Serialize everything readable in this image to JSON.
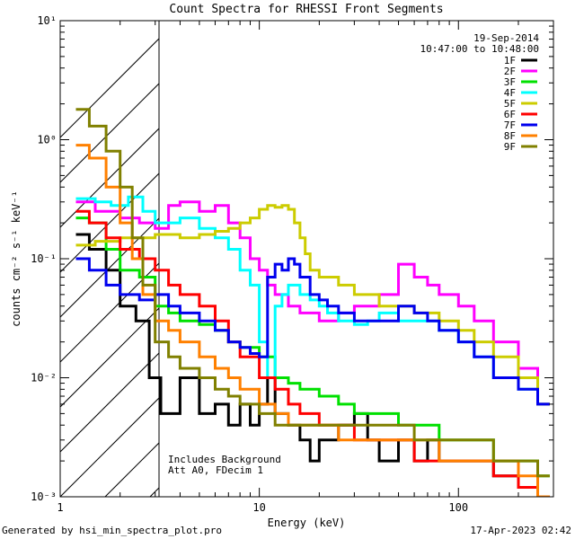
{
  "chart_data": {
    "type": "line",
    "title": "Count Spectra for RHESSI Front Segments",
    "xlabel": "Energy (keV)",
    "ylabel": "counts cm⁻² s⁻¹ keV⁻¹",
    "xscale": "log",
    "yscale": "log",
    "xlim": [
      1,
      300
    ],
    "ylim": [
      0.001,
      10
    ],
    "x_ticks": [
      {
        "value": 1,
        "label": "1"
      },
      {
        "value": 10,
        "label": "10"
      },
      {
        "value": 100,
        "label": "100"
      }
    ],
    "y_ticks": [
      {
        "value": 10,
        "label": "10¹"
      },
      {
        "value": 1,
        "label": "10⁰"
      },
      {
        "value": 0.1,
        "label": "10⁻¹"
      },
      {
        "value": 0.01,
        "label": "10⁻²"
      },
      {
        "value": 0.001,
        "label": "10⁻³"
      }
    ],
    "hatched_region": {
      "x_from": 1,
      "x_to": 3
    },
    "date": "19-Sep-2014",
    "time_range": "10:47:00 to 10:48:00",
    "annotation_lines": [
      "Includes Background",
      "Att A0, FDecim 1"
    ],
    "legend_position": "top-right",
    "series": [
      {
        "name": "1F",
        "color": "#000000",
        "points": [
          [
            1.2,
            0.16
          ],
          [
            1.4,
            0.12
          ],
          [
            1.7,
            0.08
          ],
          [
            2.0,
            0.04
          ],
          [
            2.4,
            0.03
          ],
          [
            2.8,
            0.01
          ],
          [
            3.2,
            0.005
          ],
          [
            4,
            0.01
          ],
          [
            5,
            0.005
          ],
          [
            6,
            0.006
          ],
          [
            7,
            0.004
          ],
          [
            8,
            0.006
          ],
          [
            9,
            0.004
          ],
          [
            10,
            0.006
          ],
          [
            11,
            0.01
          ],
          [
            12,
            0.005
          ],
          [
            14,
            0.004
          ],
          [
            16,
            0.003
          ],
          [
            18,
            0.002
          ],
          [
            20,
            0.003
          ],
          [
            25,
            0.004
          ],
          [
            30,
            0.005
          ],
          [
            35,
            0.003
          ],
          [
            40,
            0.002
          ],
          [
            50,
            0.003
          ],
          [
            60,
            0.002
          ],
          [
            70,
            0.003
          ],
          [
            80,
            0.002
          ],
          [
            100,
            0.002
          ],
          [
            120,
            0.002
          ],
          [
            150,
            0.0015
          ],
          [
            200,
            0.0012
          ],
          [
            250,
            0.001
          ]
        ]
      },
      {
        "name": "2F",
        "color": "#ff00ff",
        "points": [
          [
            1.2,
            0.3
          ],
          [
            1.5,
            0.25
          ],
          [
            2,
            0.22
          ],
          [
            2.5,
            0.2
          ],
          [
            3,
            0.18
          ],
          [
            3.5,
            0.28
          ],
          [
            4,
            0.3
          ],
          [
            5,
            0.25
          ],
          [
            6,
            0.28
          ],
          [
            7,
            0.2
          ],
          [
            8,
            0.15
          ],
          [
            9,
            0.1
          ],
          [
            10,
            0.08
          ],
          [
            11,
            0.06
          ],
          [
            12,
            0.05
          ],
          [
            14,
            0.04
          ],
          [
            16,
            0.035
          ],
          [
            20,
            0.03
          ],
          [
            25,
            0.035
          ],
          [
            30,
            0.04
          ],
          [
            40,
            0.05
          ],
          [
            50,
            0.09
          ],
          [
            60,
            0.07
          ],
          [
            70,
            0.06
          ],
          [
            80,
            0.05
          ],
          [
            100,
            0.04
          ],
          [
            120,
            0.03
          ],
          [
            150,
            0.02
          ],
          [
            200,
            0.012
          ],
          [
            250,
            0.006
          ]
        ]
      },
      {
        "name": "3F",
        "color": "#00e000",
        "points": [
          [
            1.2,
            0.22
          ],
          [
            1.4,
            0.2
          ],
          [
            1.7,
            0.12
          ],
          [
            2,
            0.08
          ],
          [
            2.5,
            0.07
          ],
          [
            3,
            0.04
          ],
          [
            3.5,
            0.035
          ],
          [
            4,
            0.03
          ],
          [
            5,
            0.028
          ],
          [
            6,
            0.025
          ],
          [
            7,
            0.02
          ],
          [
            8,
            0.018
          ],
          [
            10,
            0.015
          ],
          [
            12,
            0.01
          ],
          [
            14,
            0.009
          ],
          [
            16,
            0.008
          ],
          [
            20,
            0.007
          ],
          [
            25,
            0.006
          ],
          [
            30,
            0.005
          ],
          [
            40,
            0.005
          ],
          [
            50,
            0.004
          ],
          [
            60,
            0.004
          ],
          [
            80,
            0.003
          ],
          [
            100,
            0.003
          ],
          [
            150,
            0.002
          ],
          [
            200,
            0.002
          ],
          [
            250,
            0.0015
          ]
        ]
      },
      {
        "name": "4F",
        "color": "#00ffff",
        "points": [
          [
            1.2,
            0.32
          ],
          [
            1.5,
            0.3
          ],
          [
            1.8,
            0.28
          ],
          [
            2.2,
            0.33
          ],
          [
            2.6,
            0.25
          ],
          [
            3,
            0.2
          ],
          [
            3.5,
            0.2
          ],
          [
            4,
            0.22
          ],
          [
            5,
            0.18
          ],
          [
            6,
            0.15
          ],
          [
            7,
            0.12
          ],
          [
            8,
            0.08
          ],
          [
            9,
            0.06
          ],
          [
            10,
            0.02
          ],
          [
            11,
            0.01
          ],
          [
            12,
            0.04
          ],
          [
            13,
            0.05
          ],
          [
            14,
            0.06
          ],
          [
            16,
            0.05
          ],
          [
            18,
            0.045
          ],
          [
            20,
            0.04
          ],
          [
            22,
            0.035
          ],
          [
            25,
            0.03
          ],
          [
            30,
            0.028
          ],
          [
            35,
            0.03
          ],
          [
            40,
            0.035
          ],
          [
            50,
            0.03
          ],
          [
            60,
            0.03
          ],
          [
            80,
            0.025
          ],
          [
            100,
            0.02
          ],
          [
            120,
            0.015
          ],
          [
            150,
            0.01
          ],
          [
            200,
            0.008
          ],
          [
            250,
            0.006
          ]
        ]
      },
      {
        "name": "5F",
        "color": "#cccc00",
        "points": [
          [
            1.2,
            0.13
          ],
          [
            1.5,
            0.14
          ],
          [
            2,
            0.15
          ],
          [
            3,
            0.16
          ],
          [
            4,
            0.15
          ],
          [
            5,
            0.16
          ],
          [
            6,
            0.17
          ],
          [
            7,
            0.18
          ],
          [
            8,
            0.2
          ],
          [
            9,
            0.22
          ],
          [
            10,
            0.26
          ],
          [
            11,
            0.28
          ],
          [
            12,
            0.27
          ],
          [
            13,
            0.28
          ],
          [
            14,
            0.26
          ],
          [
            15,
            0.2
          ],
          [
            16,
            0.15
          ],
          [
            17,
            0.11
          ],
          [
            18,
            0.08
          ],
          [
            20,
            0.07
          ],
          [
            25,
            0.06
          ],
          [
            30,
            0.05
          ],
          [
            40,
            0.04
          ],
          [
            50,
            0.04
          ],
          [
            60,
            0.035
          ],
          [
            80,
            0.03
          ],
          [
            100,
            0.025
          ],
          [
            120,
            0.02
          ],
          [
            150,
            0.015
          ],
          [
            200,
            0.01
          ],
          [
            250,
            0.006
          ]
        ]
      },
      {
        "name": "6F",
        "color": "#ff0000",
        "points": [
          [
            1.2,
            0.25
          ],
          [
            1.4,
            0.2
          ],
          [
            1.7,
            0.15
          ],
          [
            2,
            0.12
          ],
          [
            2.5,
            0.1
          ],
          [
            3,
            0.08
          ],
          [
            3.5,
            0.06
          ],
          [
            4,
            0.05
          ],
          [
            5,
            0.04
          ],
          [
            6,
            0.03
          ],
          [
            7,
            0.02
          ],
          [
            8,
            0.015
          ],
          [
            10,
            0.01
          ],
          [
            12,
            0.008
          ],
          [
            14,
            0.006
          ],
          [
            16,
            0.005
          ],
          [
            20,
            0.004
          ],
          [
            25,
            0.004
          ],
          [
            30,
            0.003
          ],
          [
            40,
            0.003
          ],
          [
            50,
            0.003
          ],
          [
            60,
            0.002
          ],
          [
            80,
            0.002
          ],
          [
            100,
            0.002
          ],
          [
            150,
            0.0015
          ],
          [
            200,
            0.0012
          ],
          [
            250,
            0.001
          ]
        ]
      },
      {
        "name": "7F",
        "color": "#0000ee",
        "points": [
          [
            1.2,
            0.1
          ],
          [
            1.4,
            0.08
          ],
          [
            1.7,
            0.06
          ],
          [
            2,
            0.05
          ],
          [
            2.5,
            0.045
          ],
          [
            3,
            0.05
          ],
          [
            3.5,
            0.04
          ],
          [
            4,
            0.035
          ],
          [
            5,
            0.03
          ],
          [
            6,
            0.025
          ],
          [
            7,
            0.02
          ],
          [
            8,
            0.018
          ],
          [
            9,
            0.016
          ],
          [
            10,
            0.015
          ],
          [
            11,
            0.07
          ],
          [
            12,
            0.09
          ],
          [
            13,
            0.08
          ],
          [
            14,
            0.1
          ],
          [
            15,
            0.09
          ],
          [
            16,
            0.07
          ],
          [
            18,
            0.05
          ],
          [
            20,
            0.045
          ],
          [
            22,
            0.04
          ],
          [
            25,
            0.035
          ],
          [
            30,
            0.03
          ],
          [
            40,
            0.03
          ],
          [
            50,
            0.04
          ],
          [
            60,
            0.035
          ],
          [
            70,
            0.03
          ],
          [
            80,
            0.025
          ],
          [
            100,
            0.02
          ],
          [
            120,
            0.015
          ],
          [
            150,
            0.01
          ],
          [
            200,
            0.008
          ],
          [
            250,
            0.006
          ]
        ]
      },
      {
        "name": "8F",
        "color": "#ff8000",
        "points": [
          [
            1.2,
            0.9
          ],
          [
            1.4,
            0.7
          ],
          [
            1.7,
            0.4
          ],
          [
            2,
            0.2
          ],
          [
            2.3,
            0.1
          ],
          [
            2.6,
            0.05
          ],
          [
            3,
            0.03
          ],
          [
            3.5,
            0.025
          ],
          [
            4,
            0.02
          ],
          [
            5,
            0.015
          ],
          [
            6,
            0.012
          ],
          [
            7,
            0.01
          ],
          [
            8,
            0.008
          ],
          [
            10,
            0.006
          ],
          [
            12,
            0.005
          ],
          [
            14,
            0.004
          ],
          [
            16,
            0.004
          ],
          [
            20,
            0.004
          ],
          [
            25,
            0.003
          ],
          [
            30,
            0.003
          ],
          [
            40,
            0.003
          ],
          [
            50,
            0.003
          ],
          [
            60,
            0.003
          ],
          [
            80,
            0.002
          ],
          [
            100,
            0.002
          ],
          [
            150,
            0.002
          ],
          [
            200,
            0.0015
          ],
          [
            250,
            0.001
          ]
        ]
      },
      {
        "name": "9F",
        "color": "#808000",
        "points": [
          [
            1.2,
            1.8
          ],
          [
            1.4,
            1.3
          ],
          [
            1.7,
            0.8
          ],
          [
            2,
            0.4
          ],
          [
            2.3,
            0.15
          ],
          [
            2.6,
            0.06
          ],
          [
            3,
            0.02
          ],
          [
            3.5,
            0.015
          ],
          [
            4,
            0.012
          ],
          [
            5,
            0.01
          ],
          [
            6,
            0.008
          ],
          [
            7,
            0.007
          ],
          [
            8,
            0.006
          ],
          [
            10,
            0.005
          ],
          [
            12,
            0.004
          ],
          [
            14,
            0.004
          ],
          [
            16,
            0.004
          ],
          [
            20,
            0.004
          ],
          [
            25,
            0.004
          ],
          [
            30,
            0.004
          ],
          [
            40,
            0.004
          ],
          [
            50,
            0.004
          ],
          [
            60,
            0.003
          ],
          [
            80,
            0.003
          ],
          [
            100,
            0.003
          ],
          [
            150,
            0.002
          ],
          [
            200,
            0.002
          ],
          [
            250,
            0.0015
          ]
        ]
      }
    ]
  },
  "footer": {
    "generated_by": "Generated by hsi_min_spectra_plot.pro",
    "timestamp": "17-Apr-2023 02:42"
  }
}
